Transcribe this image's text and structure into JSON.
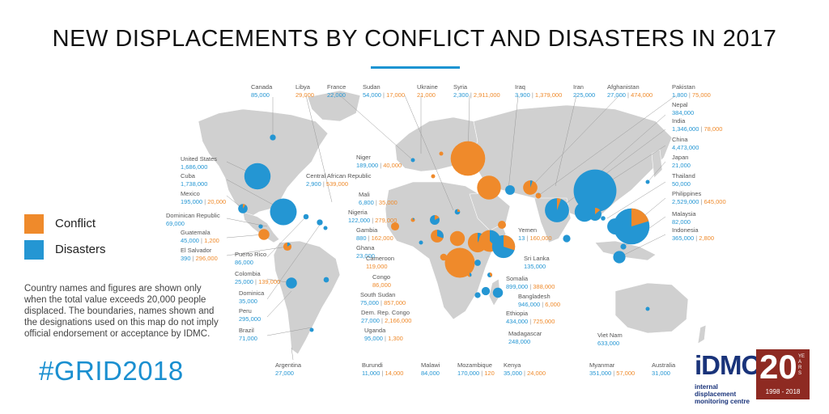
{
  "title": "NEW DISPLACEMENTS BY CONFLICT AND DISASTERS IN 2017",
  "legend": [
    {
      "label": "Conflict",
      "color": "#ef8a2b"
    },
    {
      "label": "Disasters",
      "color": "#2496d3"
    }
  ],
  "note": "Country names and figures are shown only when the total value exceeds 20,000 people displaced. The boundaries, names shown and the designations used on this map do not imply official endorsement or acceptance by IDMC.",
  "hashtag": "#GRID2018",
  "logo": {
    "name": "iDMC",
    "subtitle": "internal displacement monitoring centre",
    "anniversary": "20",
    "years_word": "YEARS",
    "range": "1998 - 2018"
  },
  "colors": {
    "conflict": "#ef8a2b",
    "disasters": "#2496d3",
    "land": "#d0d0d0"
  },
  "countries": [
    {
      "name": "Canada",
      "disasters": "85,000"
    },
    {
      "name": "Libya",
      "conflict": "29,000"
    },
    {
      "name": "France",
      "disasters": "22,000"
    },
    {
      "name": "Sudan",
      "disasters": "54,000",
      "conflict": "17,000"
    },
    {
      "name": "Ukraine",
      "conflict": "21,000"
    },
    {
      "name": "Syria",
      "disasters": "2,300",
      "conflict": "2,911,000"
    },
    {
      "name": "Iraq",
      "disasters": "3,900",
      "conflict": "1,379,000"
    },
    {
      "name": "Iran",
      "disasters": "225,000"
    },
    {
      "name": "Afghanistan",
      "disasters": "27,000",
      "conflict": "474,000"
    },
    {
      "name": "Pakistan",
      "disasters": "1,800",
      "conflict": "75,000"
    },
    {
      "name": "Nepal",
      "disasters": "384,000"
    },
    {
      "name": "India",
      "disasters": "1,346,000",
      "conflict": "78,000"
    },
    {
      "name": "China",
      "disasters": "4,473,000"
    },
    {
      "name": "Japan",
      "disasters": "21,000"
    },
    {
      "name": "Thailand",
      "disasters": "50,000"
    },
    {
      "name": "Philippines",
      "disasters": "2,529,000",
      "conflict": "645,000"
    },
    {
      "name": "Malaysia",
      "disasters": "82,000"
    },
    {
      "name": "Indonesia",
      "disasters": "365,000",
      "conflict": "2,800"
    },
    {
      "name": "United States",
      "disasters": "1,686,000"
    },
    {
      "name": "Cuba",
      "disasters": "1,738,000"
    },
    {
      "name": "Mexico",
      "disasters": "195,000",
      "conflict": "20,000"
    },
    {
      "name": "Dominican Republic",
      "disasters": "69,000"
    },
    {
      "name": "Guatemala",
      "disasters": "45,000",
      "conflict": "1,200"
    },
    {
      "name": "El Salvador",
      "disasters": "390",
      "conflict": "296,000"
    },
    {
      "name": "Puerto Rico",
      "disasters": "86,000"
    },
    {
      "name": "Colombia",
      "disasters": "25,000",
      "conflict": "139,000"
    },
    {
      "name": "Dominica",
      "disasters": "35,000"
    },
    {
      "name": "Peru",
      "disasters": "295,000"
    },
    {
      "name": "Brazil",
      "disasters": "71,000"
    },
    {
      "name": "Argentina",
      "disasters": "27,000"
    },
    {
      "name": "Niger",
      "disasters": "189,000",
      "conflict": "40,000"
    },
    {
      "name": "Central African Republic",
      "disasters": "2,900",
      "conflict": "539,000"
    },
    {
      "name": "Mali",
      "disasters": "6,800",
      "conflict": "35,000"
    },
    {
      "name": "Nigeria",
      "disasters": "122,000",
      "conflict": "279,000"
    },
    {
      "name": "Gambia",
      "disasters": "880",
      "conflict": "162,000"
    },
    {
      "name": "Ghana",
      "disasters": "23,000"
    },
    {
      "name": "Cameroon",
      "conflict": "119,000"
    },
    {
      "name": "Congo",
      "conflict": "86,000"
    },
    {
      "name": "South Sudan",
      "disasters": "75,000",
      "conflict": "857,000"
    },
    {
      "name": "Dem. Rep. Congo",
      "disasters": "27,000",
      "conflict": "2,166,000"
    },
    {
      "name": "Uganda",
      "disasters": "95,000",
      "conflict": "1,300"
    },
    {
      "name": "Burundi",
      "disasters": "11,000",
      "conflict": "14,000"
    },
    {
      "name": "Malawi",
      "disasters": "84,000"
    },
    {
      "name": "Mozambique",
      "disasters": "170,000",
      "conflict": "120"
    },
    {
      "name": "Kenya",
      "disasters": "35,000",
      "conflict": "24,000"
    },
    {
      "name": "Madagascar",
      "disasters": "248,000"
    },
    {
      "name": "Ethiopia",
      "disasters": "434,000",
      "conflict": "725,000"
    },
    {
      "name": "Bangladesh",
      "disasters": "946,000",
      "conflict": "6,000"
    },
    {
      "name": "Somalia",
      "disasters": "899,000",
      "conflict": "388,000"
    },
    {
      "name": "Sri Lanka",
      "disasters": "135,000"
    },
    {
      "name": "Yemen",
      "disasters": "13",
      "conflict": "160,000"
    },
    {
      "name": "Myanmar",
      "disasters": "351,000",
      "conflict": "57,000"
    },
    {
      "name": "Viet Nam",
      "disasters": "633,000"
    },
    {
      "name": "Australia",
      "disasters": "31,000"
    }
  ]
}
